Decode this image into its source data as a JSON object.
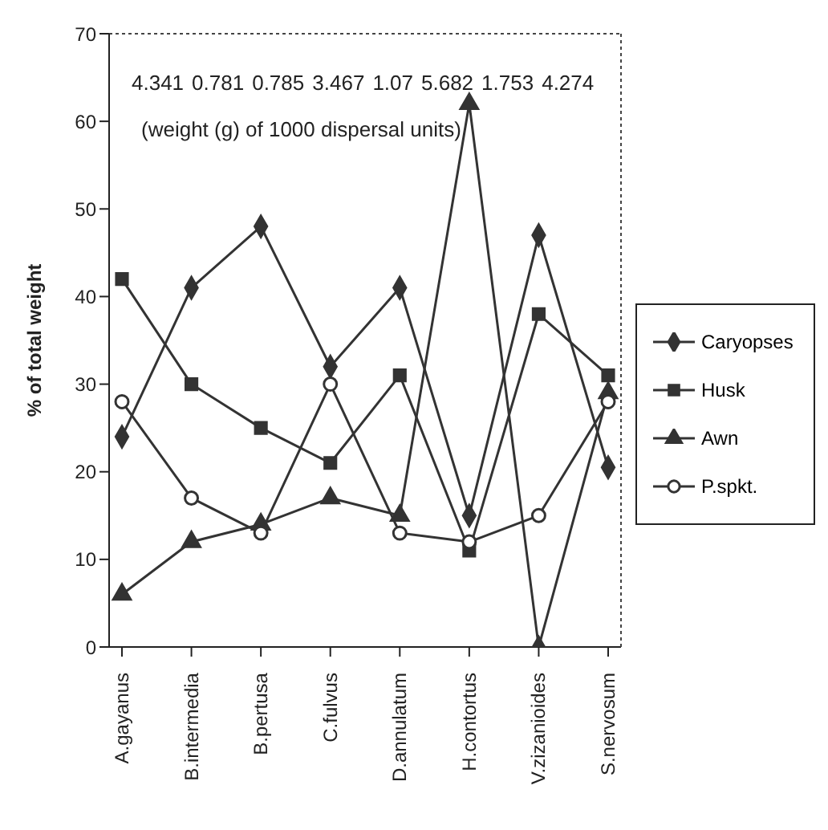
{
  "chart_data": {
    "type": "line",
    "ylabel": "% of total weight",
    "categories": [
      "A.gayanus",
      "B.intermedia",
      "B.pertusa",
      "C.fulvus",
      "D.annulatum",
      "H.contortus",
      "V.zizanioides",
      "S.nervosum"
    ],
    "series": [
      {
        "name": "Caryopses",
        "color": "#333333",
        "marker": "diamond",
        "values": [
          24,
          41,
          48,
          32,
          41,
          15,
          47,
          20.5
        ]
      },
      {
        "name": "Husk",
        "color": "#333333",
        "marker": "square",
        "values": [
          42,
          30,
          25,
          21,
          31,
          11,
          38,
          31
        ]
      },
      {
        "name": "Awn",
        "color": "#333333",
        "marker": "triangle",
        "values": [
          6,
          12,
          14,
          17,
          15,
          62,
          0,
          29
        ]
      },
      {
        "name": "P.spkt.",
        "color": "#333333",
        "marker": "circle",
        "values": [
          28,
          17,
          13,
          30,
          13,
          12,
          15,
          28
        ]
      }
    ],
    "annotations": [
      "4.341",
      "0.781",
      "0.785",
      "3.467",
      "1.07",
      "5.682",
      "1.753",
      "4.274",
      "(weight (g) of 1000 dispersal units)"
    ],
    "ylim": [
      0,
      70
    ],
    "yticks": [
      0,
      10,
      20,
      30,
      40,
      50,
      60,
      70
    ],
    "grid": false,
    "legend": "right",
    "line_style": "solid"
  }
}
